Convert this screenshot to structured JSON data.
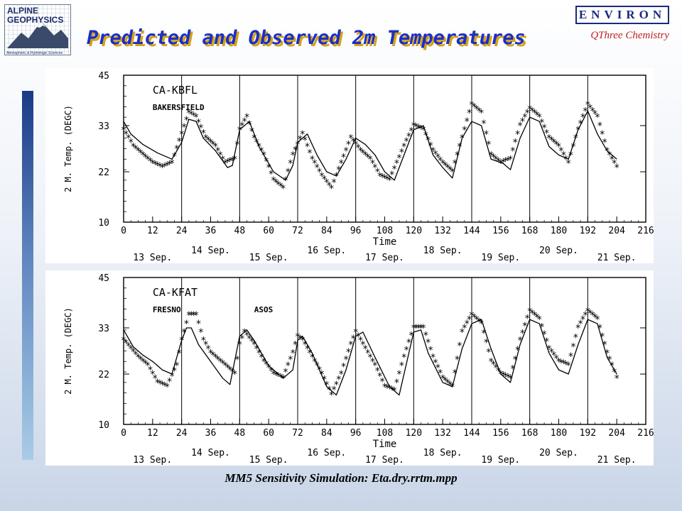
{
  "header": {
    "logo_line1": "ALPINE",
    "logo_line2": "GEOPHYSICS",
    "logo_tagline": "Atmospheric & Hydrologic Sciences",
    "environ_label": "ENVIRON",
    "qthree_label": "QThree Chemistry",
    "title": "Predicted and Observed 2m Temperatures",
    "colors": {
      "title": "#1c2ec8",
      "title_shadow": "#d4a318",
      "environ": "#1a2a7a",
      "qthree": "#c02020"
    }
  },
  "footer": {
    "caption": "MM5 Sensitivity Simulation:  Eta.dry.rrtm.mpp"
  },
  "chart_data": [
    {
      "type": "line",
      "station": "CA-KBFL",
      "site_name": "BAKERSFIELD",
      "ylabel": "2 M. Temp. (DEGC)",
      "xlabel": "Time",
      "xlim": [
        0,
        216
      ],
      "ylim": [
        10,
        45
      ],
      "yticks": [
        10,
        22,
        33,
        45
      ],
      "xticks": [
        0,
        12,
        24,
        36,
        48,
        60,
        72,
        84,
        96,
        108,
        120,
        132,
        144,
        156,
        168,
        180,
        192,
        204,
        216
      ],
      "day_dividers": [
        24,
        48,
        72,
        96,
        120,
        144,
        168,
        192
      ],
      "date_labels": [
        {
          "x": 6,
          "text": "13 Sep.",
          "row": 2
        },
        {
          "x": 18,
          "text": "14 Sep.",
          "row": 1
        },
        {
          "x": 30,
          "text": "15 Sep.",
          "row": 2
        },
        {
          "x": 42,
          "text": "16 Sep.",
          "row": 1
        },
        {
          "x": 54,
          "text": "17 Sep.",
          "row": 2
        },
        {
          "x": 66,
          "text": "18 Sep.",
          "row": 1
        },
        {
          "x": 78,
          "text": "19 Sep.",
          "row": 2
        },
        {
          "x": 90,
          "text": "20 Sep.",
          "row": 1
        },
        {
          "x": 102,
          "text": "21 Sep.",
          "row": 2
        }
      ],
      "predicted_keypoints": [
        [
          0,
          34
        ],
        [
          3,
          31
        ],
        [
          8,
          28.5
        ],
        [
          14,
          26.5
        ],
        [
          20,
          25
        ],
        [
          24,
          29
        ],
        [
          27,
          34.5
        ],
        [
          30,
          34
        ],
        [
          33,
          30
        ],
        [
          38,
          27
        ],
        [
          43,
          23
        ],
        [
          45,
          23.5
        ],
        [
          48,
          32
        ],
        [
          52,
          34
        ],
        [
          56,
          28
        ],
        [
          62,
          22
        ],
        [
          67,
          20
        ],
        [
          70,
          23.5
        ],
        [
          72,
          29
        ],
        [
          76,
          31
        ],
        [
          80,
          26
        ],
        [
          84,
          22
        ],
        [
          88,
          21
        ],
        [
          92,
          25
        ],
        [
          96,
          30
        ],
        [
          100,
          28.5
        ],
        [
          104,
          26
        ],
        [
          108,
          22
        ],
        [
          112,
          20
        ],
        [
          116,
          26
        ],
        [
          120,
          32
        ],
        [
          124,
          33
        ],
        [
          128,
          26
        ],
        [
          132,
          23
        ],
        [
          136,
          20.5
        ],
        [
          140,
          30
        ],
        [
          144,
          34
        ],
        [
          148,
          33
        ],
        [
          152,
          25
        ],
        [
          157,
          24
        ],
        [
          160,
          22.5
        ],
        [
          164,
          30
        ],
        [
          168,
          35
        ],
        [
          172,
          34
        ],
        [
          176,
          28
        ],
        [
          180,
          26
        ],
        [
          184,
          25
        ],
        [
          188,
          32
        ],
        [
          192,
          36.5
        ],
        [
          196,
          31
        ],
        [
          200,
          27
        ],
        [
          204,
          25
        ]
      ],
      "observed_keypoints": [
        [
          0,
          32
        ],
        [
          4,
          28
        ],
        [
          8,
          26
        ],
        [
          12,
          24
        ],
        [
          16,
          23
        ],
        [
          20,
          24
        ],
        [
          24,
          31
        ],
        [
          27,
          36
        ],
        [
          30,
          35
        ],
        [
          34,
          30
        ],
        [
          38,
          28
        ],
        [
          42,
          24
        ],
        [
          46,
          25
        ],
        [
          48,
          32
        ],
        [
          51,
          35
        ],
        [
          54,
          30
        ],
        [
          58,
          26
        ],
        [
          62,
          20
        ],
        [
          66,
          18
        ],
        [
          70,
          26
        ],
        [
          74,
          31
        ],
        [
          78,
          25
        ],
        [
          82,
          21
        ],
        [
          86,
          18
        ],
        [
          90,
          24
        ],
        [
          94,
          30
        ],
        [
          98,
          27
        ],
        [
          102,
          25
        ],
        [
          106,
          21
        ],
        [
          110,
          20
        ],
        [
          116,
          28
        ],
        [
          120,
          33
        ],
        [
          124,
          32
        ],
        [
          128,
          27
        ],
        [
          132,
          24
        ],
        [
          136,
          22
        ],
        [
          140,
          30
        ],
        [
          144,
          38
        ],
        [
          148,
          36
        ],
        [
          152,
          26
        ],
        [
          156,
          24
        ],
        [
          160,
          25
        ],
        [
          164,
          33
        ],
        [
          168,
          37
        ],
        [
          172,
          35
        ],
        [
          176,
          30
        ],
        [
          180,
          28
        ],
        [
          184,
          24
        ],
        [
          188,
          32
        ],
        [
          192,
          38
        ],
        [
          196,
          35
        ],
        [
          200,
          27
        ],
        [
          204,
          23
        ]
      ]
    },
    {
      "type": "line",
      "station": "CA-KFAT",
      "site_name": "FRESNO",
      "site_note": "ASOS",
      "ylabel": "2 M. Temp. (DEGC)",
      "xlabel": "Time",
      "xlim": [
        0,
        216
      ],
      "ylim": [
        10,
        45
      ],
      "yticks": [
        10,
        22,
        33,
        45
      ],
      "xticks": [
        0,
        12,
        24,
        36,
        48,
        60,
        72,
        84,
        96,
        108,
        120,
        132,
        144,
        156,
        168,
        180,
        192,
        204,
        216
      ],
      "day_dividers": [
        24,
        48,
        72,
        96,
        120,
        144,
        168,
        192
      ],
      "date_labels": [
        {
          "x": 6,
          "text": "13 Sep.",
          "row": 2
        },
        {
          "x": 18,
          "text": "14 Sep.",
          "row": 1
        },
        {
          "x": 30,
          "text": "15 Sep.",
          "row": 2
        },
        {
          "x": 42,
          "text": "16 Sep.",
          "row": 1
        },
        {
          "x": 54,
          "text": "17 Sep.",
          "row": 2
        },
        {
          "x": 66,
          "text": "18 Sep.",
          "row": 1
        },
        {
          "x": 78,
          "text": "19 Sep.",
          "row": 2
        },
        {
          "x": 90,
          "text": "20 Sep.",
          "row": 1
        },
        {
          "x": 102,
          "text": "21 Sep.",
          "row": 2
        }
      ],
      "predicted_keypoints": [
        [
          0,
          32.5
        ],
        [
          4,
          28.5
        ],
        [
          8,
          26.5
        ],
        [
          12,
          25
        ],
        [
          16,
          23
        ],
        [
          20,
          22
        ],
        [
          24,
          30
        ],
        [
          26,
          33
        ],
        [
          28,
          33
        ],
        [
          31,
          29
        ],
        [
          36,
          25
        ],
        [
          41,
          21
        ],
        [
          44,
          19.5
        ],
        [
          48,
          31
        ],
        [
          51,
          32.5
        ],
        [
          54,
          30
        ],
        [
          60,
          24
        ],
        [
          66,
          21
        ],
        [
          70,
          23
        ],
        [
          72,
          30
        ],
        [
          74,
          31
        ],
        [
          78,
          27
        ],
        [
          84,
          19
        ],
        [
          88,
          17
        ],
        [
          92,
          23
        ],
        [
          96,
          31
        ],
        [
          99,
          32
        ],
        [
          104,
          26
        ],
        [
          110,
          19
        ],
        [
          114,
          17
        ],
        [
          120,
          32
        ],
        [
          123,
          32.5
        ],
        [
          126,
          27
        ],
        [
          132,
          20
        ],
        [
          136,
          19
        ],
        [
          140,
          28
        ],
        [
          144,
          34
        ],
        [
          148,
          35
        ],
        [
          152,
          28
        ],
        [
          156,
          22
        ],
        [
          160,
          20
        ],
        [
          164,
          29
        ],
        [
          168,
          35
        ],
        [
          172,
          34
        ],
        [
          176,
          27
        ],
        [
          180,
          23
        ],
        [
          184,
          22
        ],
        [
          188,
          29
        ],
        [
          192,
          35
        ],
        [
          196,
          34
        ],
        [
          200,
          26
        ],
        [
          204,
          22
        ]
      ],
      "observed_keypoints": [
        [
          0,
          30
        ],
        [
          3,
          28
        ],
        [
          6,
          26
        ],
        [
          10,
          24
        ],
        [
          14,
          20
        ],
        [
          18,
          19
        ],
        [
          22,
          24
        ],
        [
          24,
          30
        ],
        [
          27,
          36
        ],
        [
          30,
          36
        ],
        [
          33,
          30
        ],
        [
          36,
          27
        ],
        [
          42,
          24
        ],
        [
          46,
          22
        ],
        [
          48,
          29
        ],
        [
          50,
          32
        ],
        [
          54,
          29
        ],
        [
          58,
          25
        ],
        [
          62,
          22
        ],
        [
          66,
          21
        ],
        [
          70,
          27
        ],
        [
          72,
          31
        ],
        [
          74,
          30
        ],
        [
          78,
          26
        ],
        [
          82,
          22
        ],
        [
          86,
          17
        ],
        [
          90,
          22
        ],
        [
          94,
          29
        ],
        [
          96,
          32
        ],
        [
          100,
          28
        ],
        [
          104,
          24
        ],
        [
          108,
          19
        ],
        [
          112,
          18
        ],
        [
          116,
          26
        ],
        [
          120,
          33
        ],
        [
          124,
          33
        ],
        [
          128,
          26
        ],
        [
          132,
          21
        ],
        [
          136,
          19
        ],
        [
          140,
          32
        ],
        [
          144,
          36
        ],
        [
          148,
          34
        ],
        [
          152,
          25
        ],
        [
          156,
          22
        ],
        [
          160,
          21
        ],
        [
          164,
          30
        ],
        [
          168,
          37
        ],
        [
          172,
          35
        ],
        [
          176,
          28
        ],
        [
          180,
          25
        ],
        [
          184,
          24
        ],
        [
          188,
          33
        ],
        [
          192,
          37
        ],
        [
          196,
          35
        ],
        [
          200,
          27
        ],
        [
          204,
          21
        ]
      ]
    }
  ]
}
